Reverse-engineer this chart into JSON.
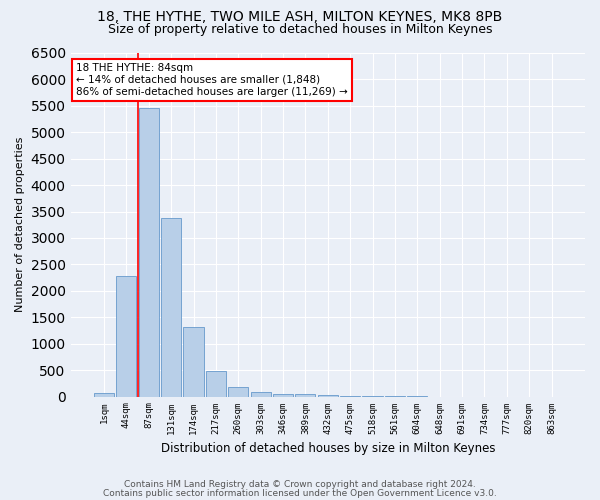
{
  "title1": "18, THE HYTHE, TWO MILE ASH, MILTON KEYNES, MK8 8PB",
  "title2": "Size of property relative to detached houses in Milton Keynes",
  "xlabel": "Distribution of detached houses by size in Milton Keynes",
  "ylabel": "Number of detached properties",
  "footer1": "Contains HM Land Registry data © Crown copyright and database right 2024.",
  "footer2": "Contains public sector information licensed under the Open Government Licence v3.0.",
  "bin_labels": [
    "1sqm",
    "44sqm",
    "87sqm",
    "131sqm",
    "174sqm",
    "217sqm",
    "260sqm",
    "303sqm",
    "346sqm",
    "389sqm",
    "432sqm",
    "475sqm",
    "518sqm",
    "561sqm",
    "604sqm",
    "648sqm",
    "691sqm",
    "734sqm",
    "777sqm",
    "820sqm",
    "863sqm"
  ],
  "bar_values": [
    75,
    2280,
    5450,
    3380,
    1310,
    475,
    175,
    90,
    55,
    45,
    30,
    10,
    5,
    3,
    2,
    1,
    0,
    0,
    0,
    0,
    0
  ],
  "bar_color": "#b8cfe8",
  "bar_edge_color": "#6699cc",
  "annotation_title": "18 THE HYTHE: 84sqm",
  "annotation_line1": "← 14% of detached houses are smaller (1,848)",
  "annotation_line2": "86% of semi-detached houses are larger (11,269) →",
  "annotation_box_color": "white",
  "annotation_border_color": "red",
  "vline_color": "red",
  "vline_x": 1.5,
  "ylim_max": 6500,
  "background_color": "#eaeff7",
  "grid_color": "white",
  "title_fontsize": 10,
  "subtitle_fontsize": 9,
  "footer_fontsize": 6.5
}
